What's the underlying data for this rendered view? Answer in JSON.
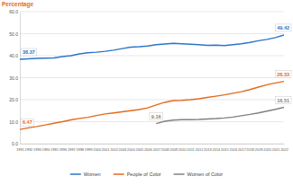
{
  "chart_data": {
    "type": "line",
    "ylabel": "Percentage",
    "categories": [
      "1991",
      "1992",
      "1993",
      "1994",
      "1995",
      "1996",
      "1997",
      "1998",
      "1999",
      "2000",
      "2001",
      "2002",
      "2003",
      "2004",
      "2005",
      "2006",
      "2007",
      "2008",
      "2009",
      "2010",
      "2011",
      "2012",
      "2013",
      "2014",
      "2015",
      "2016",
      "2017",
      "2018",
      "2019",
      "2020",
      "2021",
      "2022"
    ],
    "series": [
      {
        "name": "Women",
        "color": "#2e74c8",
        "values": [
          38.37,
          38.6,
          38.8,
          38.9,
          39.0,
          39.6,
          40.0,
          40.8,
          41.3,
          41.6,
          42.0,
          42.5,
          43.2,
          43.9,
          44.1,
          44.4,
          45.0,
          45.3,
          45.6,
          45.4,
          45.2,
          45.0,
          44.7,
          44.8,
          44.6,
          45.0,
          45.4,
          46.0,
          46.8,
          47.4,
          48.2,
          49.42
        ]
      },
      {
        "name": "People of Color",
        "color": "#e5691d",
        "values": [
          6.47,
          7.2,
          7.8,
          8.5,
          9.3,
          10.0,
          10.8,
          11.5,
          12.0,
          12.8,
          13.5,
          14.0,
          14.5,
          15.0,
          15.5,
          16.3,
          17.6,
          18.8,
          19.6,
          19.7,
          20.0,
          20.4,
          21.0,
          21.6,
          22.2,
          22.9,
          23.6,
          24.6,
          25.7,
          26.8,
          27.6,
          28.33
        ]
      },
      {
        "name": "Women of Color",
        "color": "#808080",
        "values": [
          null,
          null,
          null,
          null,
          null,
          null,
          null,
          null,
          null,
          null,
          null,
          null,
          null,
          null,
          null,
          null,
          9.16,
          10.2,
          10.7,
          10.9,
          10.9,
          11.0,
          11.2,
          11.4,
          11.7,
          12.1,
          12.7,
          13.3,
          14.0,
          14.8,
          15.6,
          16.51
        ]
      }
    ],
    "ylim": [
      0,
      60
    ],
    "yticks": [
      {
        "value": 0,
        "label": "0.0"
      },
      {
        "value": 10,
        "label": "10.0"
      },
      {
        "value": 20,
        "label": "20.0"
      },
      {
        "value": 30,
        "label": "30.0"
      },
      {
        "value": 40,
        "label": "40.0"
      },
      {
        "value": 50,
        "label": "50.0"
      },
      {
        "value": 60,
        "label": "60.0"
      }
    ],
    "grid": true,
    "legend": "bottom",
    "data_labels": true
  }
}
